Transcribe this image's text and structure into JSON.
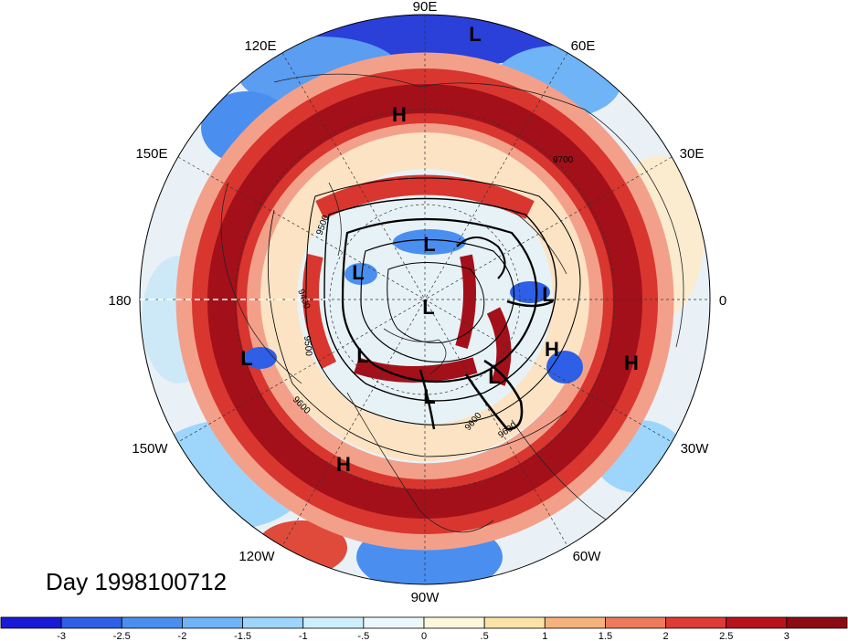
{
  "day_label": "Day 1998100712",
  "longitude_labels": [
    "90E",
    "60E",
    "30E",
    "0",
    "30W",
    "60W",
    "90W",
    "120W",
    "150W",
    "180",
    "150E",
    "120E"
  ],
  "pressure_systems": [
    "L",
    "H",
    "L",
    "L",
    "L",
    "L",
    "L",
    "H",
    "H",
    "L",
    "L",
    "L",
    "H"
  ],
  "contour_labels": [
    "9700",
    "9500",
    "9400",
    "9500",
    "9600",
    "9600",
    "9600"
  ],
  "colorbar": {
    "ticks": [
      "-3",
      "-2.5",
      "-2",
      "-1.5",
      "-1",
      "-.5",
      "0",
      ".5",
      "1",
      "1.5",
      "2",
      "2.5",
      "3"
    ],
    "colors": [
      "#1a1ad6",
      "#2e5fe6",
      "#4a8ff0",
      "#6fb4f6",
      "#9ed6fb",
      "#cdeefd",
      "#eaf8fd",
      "#fdf7dc",
      "#fbe3a6",
      "#f6b27c",
      "#ee7a5c",
      "#de3a36",
      "#b8121c",
      "#8c0a14"
    ]
  },
  "palette": {
    "deep_red": "#a3101a",
    "red": "#d8362f",
    "light_red": "#f3a08a",
    "cream": "#fbecd0",
    "pale_blue": "#cde9f7",
    "blue": "#5b9df0",
    "deep_blue": "#2a40d8"
  }
}
